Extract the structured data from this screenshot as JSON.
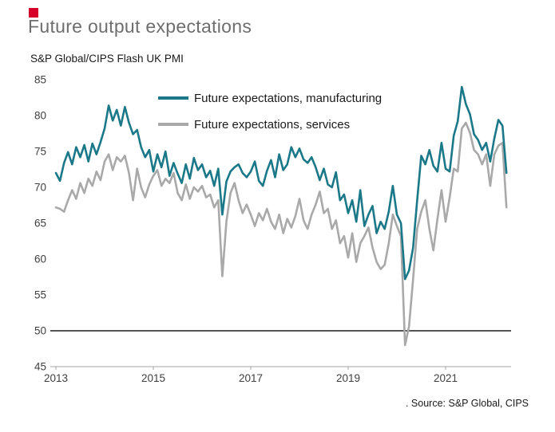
{
  "branding": {
    "red_accent": "#d6002a"
  },
  "title": "Future output expectations",
  "subtitle": "S&P Global/CIPS Flash UK PMI",
  "source": ". Source: S&P Global, CIPS",
  "chart_data": {
    "type": "line",
    "title": "Future output expectations",
    "subtitle": "S&P Global/CIPS Flash UK PMI",
    "x_unit": "month",
    "x_start": "2013-01",
    "x_end": "2022-04",
    "x_tick_years": [
      2013,
      2015,
      2017,
      2019,
      2021
    ],
    "y_ticks": [
      45,
      50,
      55,
      60,
      65,
      70,
      75,
      80,
      85
    ],
    "ylim": [
      45,
      85
    ],
    "reference_line": 50,
    "grid": false,
    "legend_position": "top-inside",
    "series": [
      {
        "key": "manufacturing",
        "name": "Future expectations, manufacturing",
        "color": "#1b7888",
        "values": [
          72.0,
          70.9,
          73.4,
          74.9,
          73.2,
          75.6,
          74.2,
          75.9,
          73.6,
          76.1,
          74.6,
          76.3,
          78.2,
          81.4,
          79.3,
          80.8,
          78.6,
          81.2,
          79.0,
          77.4,
          78.0,
          75.6,
          74.2,
          75.2,
          72.2,
          74.6,
          72.8,
          75.0,
          71.6,
          73.4,
          71.9,
          70.6,
          73.2,
          71.2,
          74.1,
          72.4,
          73.2,
          71.4,
          72.3,
          70.2,
          72.6,
          66.2,
          70.8,
          72.2,
          72.8,
          73.2,
          72.0,
          71.4,
          72.2,
          73.6,
          70.9,
          70.2,
          72.3,
          73.8,
          71.4,
          74.6,
          72.4,
          73.2,
          75.6,
          74.2,
          75.4,
          73.9,
          73.4,
          74.2,
          72.8,
          71.0,
          72.6,
          70.4,
          70.0,
          72.1,
          68.2,
          69.0,
          66.4,
          68.2,
          65.2,
          69.6,
          64.6,
          66.2,
          67.4,
          63.6,
          65.2,
          64.2,
          66.6,
          70.2,
          66.2,
          65.0,
          57.2,
          58.4,
          61.6,
          68.2,
          74.4,
          73.2,
          75.2,
          73.0,
          72.2,
          76.2,
          72.6,
          72.2,
          77.2,
          79.2,
          84.0,
          81.6,
          80.2,
          77.4,
          76.6,
          75.2,
          76.2,
          73.6,
          76.8,
          79.4,
          78.6,
          72.0
        ]
      },
      {
        "key": "services",
        "name": "Future expectations, services",
        "color": "#a9a9a9",
        "values": [
          67.2,
          67.0,
          66.6,
          68.2,
          69.6,
          68.4,
          70.6,
          69.2,
          71.2,
          70.2,
          72.2,
          71.0,
          73.6,
          74.6,
          72.4,
          74.2,
          73.6,
          74.4,
          72.0,
          68.2,
          72.6,
          70.0,
          68.6,
          70.4,
          71.6,
          72.4,
          70.2,
          71.2,
          70.6,
          72.0,
          69.2,
          68.2,
          70.4,
          68.4,
          70.0,
          69.4,
          70.2,
          68.6,
          69.0,
          67.2,
          68.2,
          57.6,
          65.2,
          69.2,
          70.6,
          68.2,
          66.4,
          67.6,
          66.2,
          64.6,
          66.4,
          65.4,
          67.0,
          65.2,
          64.2,
          66.2,
          63.6,
          65.6,
          64.4,
          66.0,
          68.4,
          65.4,
          64.2,
          66.2,
          67.6,
          69.4,
          66.4,
          67.0,
          64.2,
          65.4,
          62.2,
          63.2,
          60.2,
          63.6,
          59.6,
          62.2,
          63.2,
          64.4,
          61.6,
          59.6,
          58.6,
          59.2,
          62.2,
          66.2,
          64.6,
          63.2,
          48.0,
          50.6,
          57.2,
          64.2,
          66.6,
          68.2,
          64.2,
          61.2,
          65.6,
          69.6,
          65.2,
          68.6,
          72.6,
          72.2,
          78.2,
          79.0,
          77.6,
          75.2,
          74.6,
          73.2,
          74.6,
          70.2,
          74.6,
          75.8,
          76.2,
          67.2
        ]
      }
    ]
  }
}
